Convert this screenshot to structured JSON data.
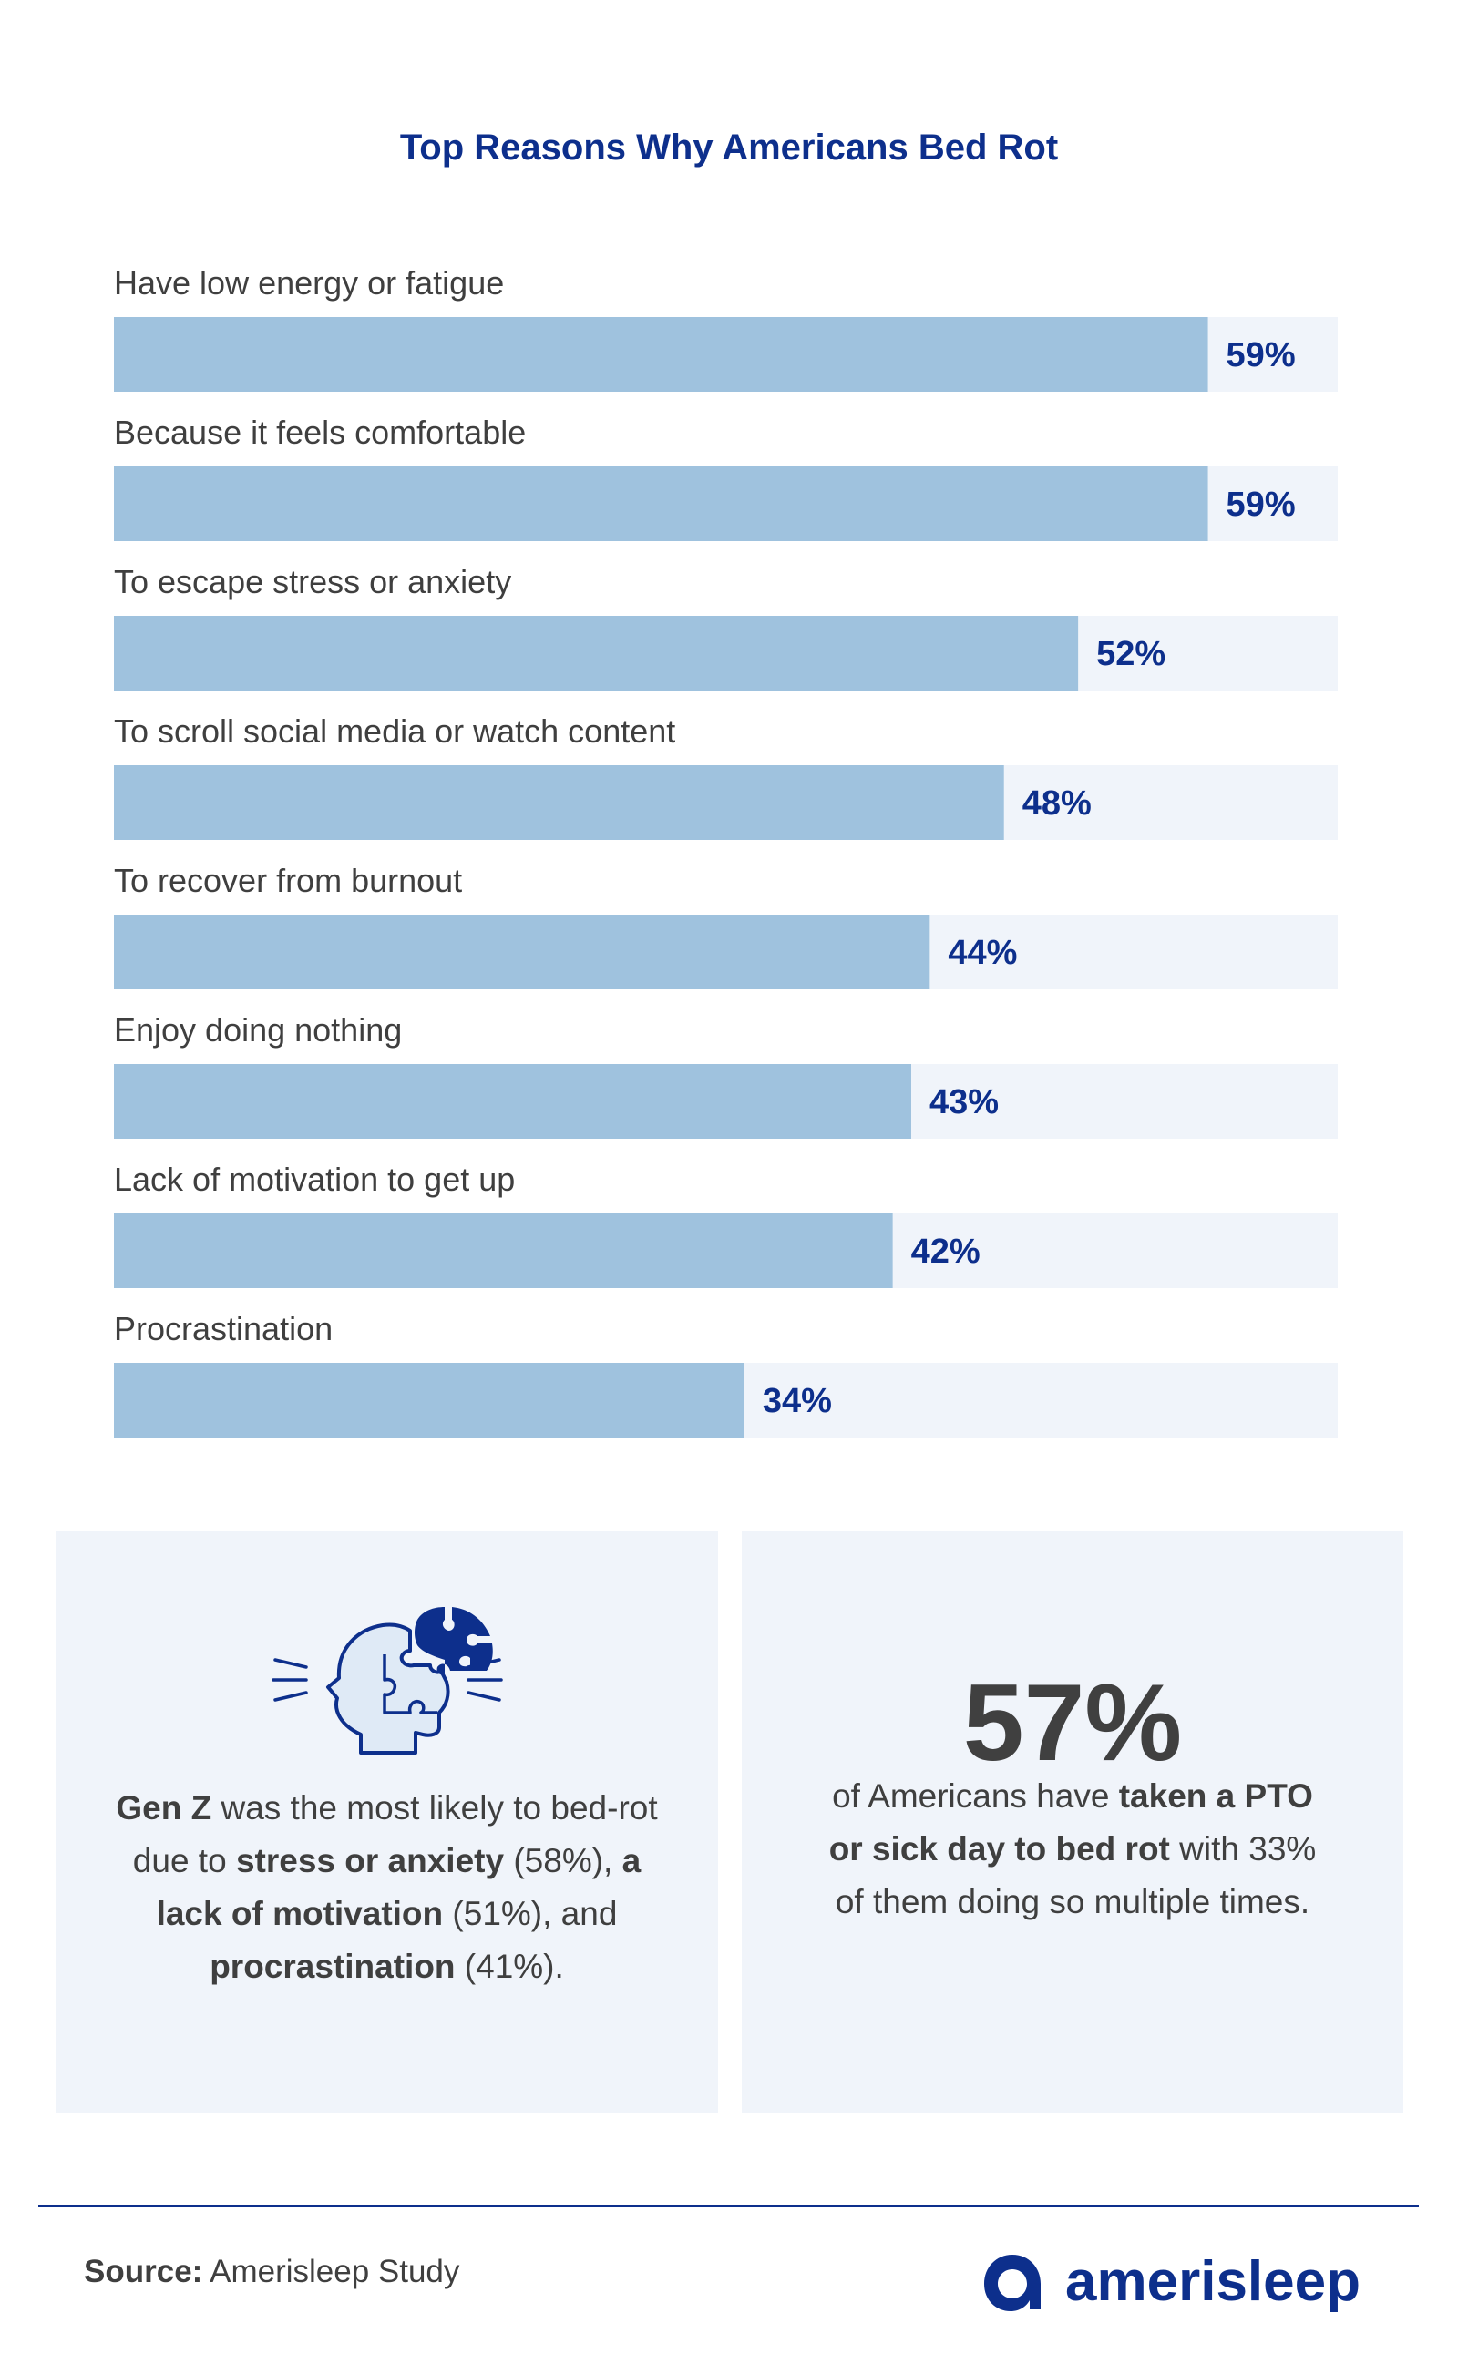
{
  "chart_data": {
    "type": "bar",
    "orientation": "horizontal",
    "title": "Top Reasons Why Americans Bed Rot",
    "categories": [
      "Have low energy or fatigue",
      "Because it feels comfortable",
      "To escape stress or anxiety",
      "To scroll social media or watch content",
      "To recover from burnout",
      "Enjoy doing nothing",
      "Lack of motivation to get up",
      "Procrastination"
    ],
    "values": [
      59,
      59,
      52,
      48,
      44,
      43,
      42,
      34
    ],
    "value_labels": [
      "59%",
      "59%",
      "52%",
      "48%",
      "44%",
      "43%",
      "42%",
      "34%"
    ],
    "xlim": [
      0,
      66
    ],
    "grid": false,
    "legend": "none",
    "colors": {
      "bar": "#9fc2de",
      "track": "#f0f4fa",
      "value_text": "#0d2f8c",
      "title": "#0d2f8c"
    }
  },
  "panels": {
    "gen_z": {
      "icon": "head-puzzle-icon",
      "subject": "Gen Z",
      "t1": " was the most likely to bed-rot due to ",
      "reason1": "stress or anxiety",
      "p1": " (58%), ",
      "reason2": "a lack of motivation",
      "p2": " (51%), and ",
      "reason3": "procrastination",
      "p3": " (41%)."
    },
    "pto": {
      "big_number": "57%",
      "t1": "of Americans have ",
      "bold": "taken a PTO or sick day to bed rot",
      "t2": " with 33% of them doing so multiple times."
    }
  },
  "footer": {
    "source_label": "Source:",
    "source_value": " Amerisleep Study",
    "logo_text": "amerisleep",
    "logo_icon": "amerisleep-logo-icon"
  }
}
